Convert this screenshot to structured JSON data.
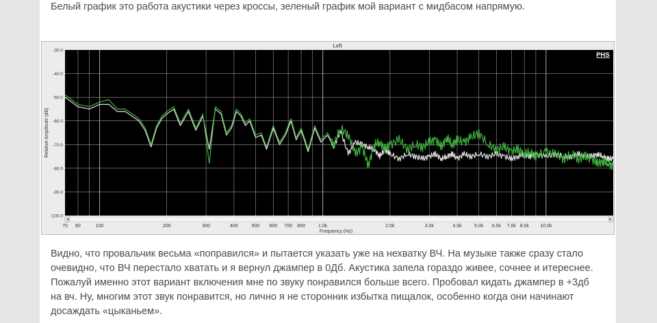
{
  "article": {
    "intro_text": "Белый график это работа акустики через кроссы, зеленый график мой вариант с мидбасом напрямую.",
    "body_text": "Видно, что провальчик весьма «поправился» и пытается указать уже на нехватку ВЧ. На музыке также сразу стало очевидно, что ВЧ перестало хватать и я вернул джампер в 0Дб. Акустика запела гораздо живее, сочнее и итереснее. Пожалуй именно этот вариант включения мне по звуку понравился больше всего. Пробовал кидать джампер в +3дб на вч. Ну, многим этот звук понравится, но лично я не сторонник избытка пищалок, особенно когда они начинают досаждать «цыканьем»."
  },
  "chart": {
    "window_title": "Left",
    "logo": "PHS",
    "y_axis_label": "Relative Amplitude (dB)",
    "x_axis_label": "Frequency (Hz)",
    "y_ticks": [
      "-30.0",
      "-40.0",
      "-50.0",
      "-60.0",
      "-70.0",
      "-80.0",
      "-90.0",
      "-100.0"
    ],
    "x_ticks": [
      "70",
      "80",
      "100",
      "200",
      "300",
      "400",
      "500",
      "600",
      "700",
      "800",
      "1.0k",
      "2.0k",
      "3.0k",
      "4.0k",
      "5.0k",
      "6.0k",
      "7.0k",
      "8.0k",
      "10.0k"
    ],
    "colors": {
      "background": "#000000",
      "grid": "#9a9a9a",
      "white_series": "#e8e8e8",
      "green_series": "#3fb33f",
      "frame": "#ececec"
    }
  },
  "chart_data": {
    "type": "line",
    "xlabel": "Frequency (Hz)",
    "ylabel": "Relative Amplitude (dB)",
    "xscale": "log",
    "xlim": [
      70,
      20000
    ],
    "ylim": [
      -100,
      -30
    ],
    "grid": true,
    "series": [
      {
        "color": "#e8e8e8",
        "x": [
          70,
          75,
          80,
          90,
          100,
          110,
          120,
          130,
          140,
          150,
          160,
          170,
          180,
          190,
          200,
          215,
          230,
          250,
          270,
          290,
          310,
          330,
          350,
          370,
          390,
          410,
          430,
          450,
          470,
          500,
          530,
          560,
          600,
          640,
          680,
          720,
          760,
          800,
          860,
          920,
          980,
          1050,
          1120,
          1200,
          1300,
          1400,
          1500,
          1600,
          1700,
          1800,
          1900,
          2000,
          2200,
          2400,
          2600,
          2800,
          3000,
          3200,
          3400,
          3600,
          3800,
          4000,
          4300,
          4600,
          5000,
          5500,
          6000,
          6500,
          7000,
          7500,
          8000,
          8500,
          9000,
          10000,
          11000,
          12000,
          13000,
          14000,
          15000,
          16000,
          17000,
          18000,
          19000,
          20000
        ],
        "y": [
          -50,
          -52,
          -54,
          -55,
          -53,
          -53,
          -56,
          -56,
          -58,
          -60,
          -64,
          -71,
          -63,
          -59,
          -57,
          -55,
          -62,
          -56,
          -64,
          -58,
          -72,
          -55,
          -57,
          -66,
          -63,
          -56,
          -58,
          -62,
          -60,
          -67,
          -66,
          -72,
          -63,
          -70,
          -66,
          -60,
          -68,
          -64,
          -73,
          -63,
          -69,
          -66,
          -71,
          -64,
          -74,
          -69,
          -70,
          -71,
          -72,
          -75,
          -72,
          -74,
          -76,
          -74,
          -75,
          -76,
          -75,
          -74,
          -76,
          -75,
          -74,
          -76,
          -74,
          -75,
          -74,
          -75,
          -74,
          -75,
          -76,
          -75,
          -74,
          -75,
          -74,
          -75,
          -74,
          -75,
          -75,
          -74,
          -75,
          -75,
          -74,
          -75,
          -76,
          -76
        ]
      },
      {
        "color": "#3fb33f",
        "x": [
          70,
          75,
          80,
          90,
          100,
          110,
          120,
          130,
          140,
          150,
          160,
          170,
          180,
          190,
          200,
          215,
          230,
          250,
          270,
          290,
          310,
          330,
          350,
          370,
          390,
          410,
          430,
          450,
          470,
          500,
          530,
          560,
          600,
          640,
          680,
          720,
          760,
          800,
          860,
          920,
          980,
          1050,
          1120,
          1200,
          1300,
          1400,
          1500,
          1600,
          1700,
          1800,
          1900,
          2000,
          2200,
          2400,
          2600,
          2800,
          3000,
          3200,
          3400,
          3600,
          3800,
          4000,
          4300,
          4600,
          5000,
          5500,
          6000,
          6500,
          7000,
          7500,
          8000,
          8500,
          9000,
          10000,
          11000,
          12000,
          13000,
          14000,
          15000,
          16000,
          17000,
          18000,
          19000,
          20000
        ],
        "y": [
          -49,
          -51,
          -53,
          -54,
          -52,
          -51,
          -55,
          -55,
          -57,
          -59,
          -63,
          -70,
          -62,
          -58,
          -56,
          -54,
          -61,
          -55,
          -63,
          -57,
          -78,
          -54,
          -56,
          -65,
          -62,
          -55,
          -57,
          -61,
          -59,
          -66,
          -65,
          -71,
          -62,
          -69,
          -65,
          -59,
          -67,
          -63,
          -72,
          -62,
          -68,
          -65,
          -70,
          -63,
          -66,
          -74,
          -71,
          -79,
          -70,
          -69,
          -72,
          -70,
          -68,
          -72,
          -70,
          -71,
          -69,
          -68,
          -71,
          -67,
          -70,
          -68,
          -69,
          -67,
          -65,
          -70,
          -72,
          -71,
          -73,
          -72,
          -74,
          -73,
          -75,
          -73,
          -74,
          -76,
          -74,
          -76,
          -75,
          -76,
          -78,
          -77,
          -78,
          -79
        ]
      }
    ]
  }
}
